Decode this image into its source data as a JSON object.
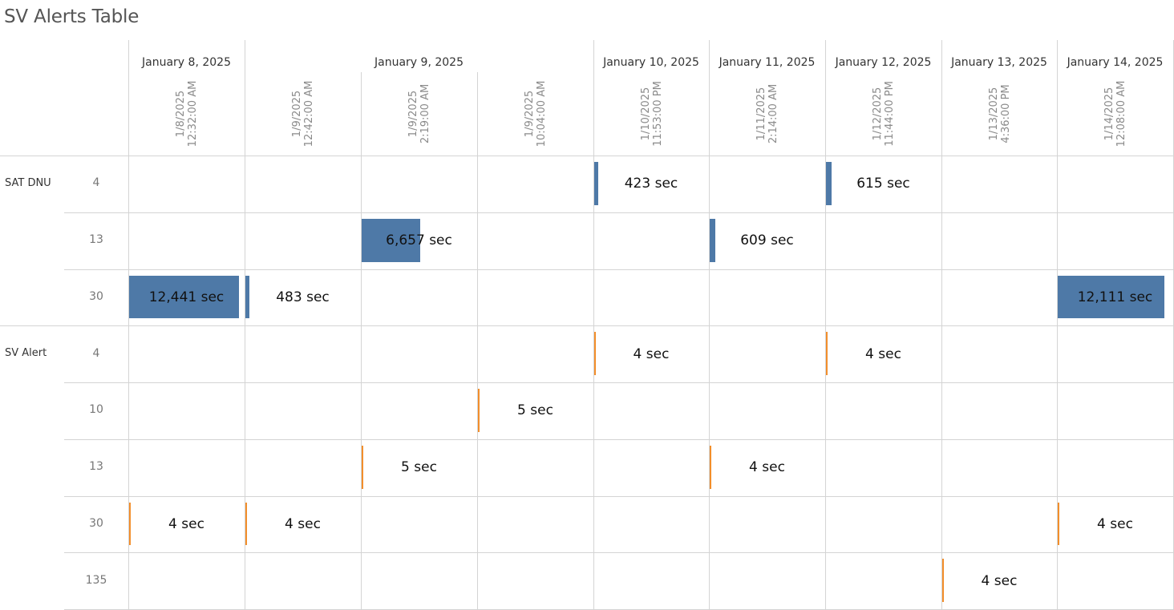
{
  "title": "SV Alerts Table",
  "colors": {
    "sat_dnu": "#4e79a7",
    "sv_alert": "#f28e2b",
    "grid": "#d4d4d4"
  },
  "date_headers": [
    {
      "label": "January 8, 2025",
      "columns": [
        0
      ]
    },
    {
      "label": "January 9, 2025",
      "columns": [
        1,
        2,
        3
      ]
    },
    {
      "label": "January 10, 2025",
      "columns": [
        4
      ]
    },
    {
      "label": "January 11, 2025",
      "columns": [
        5
      ]
    },
    {
      "label": "January 12, 2025",
      "columns": [
        6
      ]
    },
    {
      "label": "January 13, 2025",
      "columns": [
        7
      ]
    },
    {
      "label": "January 14, 2025",
      "columns": [
        8
      ]
    }
  ],
  "timestamps": [
    {
      "date": "1/8/2025",
      "time": "12:32:00 AM"
    },
    {
      "date": "1/9/2025",
      "time": "12:42:00 AM"
    },
    {
      "date": "1/9/2025",
      "time": "2:19:00 AM"
    },
    {
      "date": "1/9/2025",
      "time": "10:04:00 AM"
    },
    {
      "date": "1/10/2025",
      "time": "11:53:00 PM"
    },
    {
      "date": "1/11/2025",
      "time": "2:14:00 AM"
    },
    {
      "date": "1/12/2025",
      "time": "11:44:00 PM"
    },
    {
      "date": "1/13/2025",
      "time": "4:36:00 PM"
    },
    {
      "date": "1/14/2025",
      "time": "12:08:00 AM"
    }
  ],
  "chart_data": {
    "type": "table",
    "title": "SV Alerts Table",
    "value_unit": "sec",
    "scale_max": 12441,
    "groups": [
      {
        "name": "SAT DNU",
        "color_key": "sat_dnu",
        "rows": [
          {
            "label": "4",
            "cells": [
              null,
              null,
              null,
              null,
              423,
              null,
              615,
              null,
              null
            ],
            "texts": [
              null,
              null,
              null,
              null,
              "423 sec",
              null,
              "615 sec",
              null,
              null
            ]
          },
          {
            "label": "13",
            "cells": [
              null,
              null,
              6657,
              null,
              null,
              609,
              null,
              null,
              null
            ],
            "texts": [
              null,
              null,
              "6,657 sec",
              null,
              null,
              "609 sec",
              null,
              null,
              null
            ]
          },
          {
            "label": "30",
            "cells": [
              12441,
              483,
              null,
              null,
              null,
              null,
              null,
              null,
              12111
            ],
            "texts": [
              "12,441 sec",
              "483 sec",
              null,
              null,
              null,
              null,
              null,
              null,
              "12,111 sec"
            ]
          }
        ]
      },
      {
        "name": "SV Alert",
        "color_key": "sv_alert",
        "rows": [
          {
            "label": "4",
            "cells": [
              null,
              null,
              null,
              null,
              4,
              null,
              4,
              null,
              null
            ],
            "texts": [
              null,
              null,
              null,
              null,
              "4 sec",
              null,
              "4 sec",
              null,
              null
            ]
          },
          {
            "label": "10",
            "cells": [
              null,
              null,
              null,
              5,
              null,
              null,
              null,
              null,
              null
            ],
            "texts": [
              null,
              null,
              null,
              "5 sec",
              null,
              null,
              null,
              null,
              null
            ]
          },
          {
            "label": "13",
            "cells": [
              null,
              null,
              5,
              null,
              null,
              4,
              null,
              null,
              null
            ],
            "texts": [
              null,
              null,
              "5 sec",
              null,
              null,
              "4 sec",
              null,
              null,
              null
            ]
          },
          {
            "label": "30",
            "cells": [
              4,
              4,
              null,
              null,
              null,
              null,
              null,
              null,
              4
            ],
            "texts": [
              "4 sec",
              "4 sec",
              null,
              null,
              null,
              null,
              null,
              null,
              "4 sec"
            ]
          },
          {
            "label": "135",
            "cells": [
              null,
              null,
              null,
              null,
              null,
              null,
              null,
              4,
              null
            ],
            "texts": [
              null,
              null,
              null,
              null,
              null,
              null,
              null,
              "4 sec",
              null
            ]
          }
        ]
      }
    ]
  }
}
